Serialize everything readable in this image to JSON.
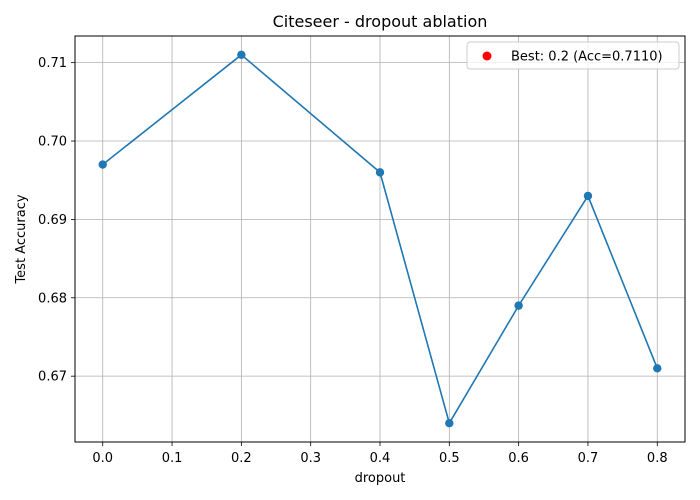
{
  "chart_data": {
    "type": "line",
    "title": "Citeseer - dropout ablation",
    "xlabel": "dropout",
    "ylabel": "Test Accuracy",
    "xlim": [
      -0.04,
      0.84
    ],
    "ylim": [
      0.6616,
      0.7134
    ],
    "xticks": [
      0.0,
      0.1,
      0.2,
      0.3,
      0.4,
      0.5,
      0.6,
      0.7,
      0.8
    ],
    "xtick_labels": [
      "0.0",
      "0.1",
      "0.2",
      "0.3",
      "0.4",
      "0.5",
      "0.6",
      "0.7",
      "0.8"
    ],
    "yticks": [
      0.67,
      0.68,
      0.69,
      0.7,
      0.71
    ],
    "ytick_labels": [
      "0.67",
      "0.68",
      "0.69",
      "0.70",
      "0.71"
    ],
    "grid": true,
    "series": [
      {
        "x": [
          0.0,
          0.2,
          0.4,
          0.5,
          0.6,
          0.7,
          0.8
        ],
        "y": [
          0.697,
          0.711,
          0.696,
          0.664,
          0.679,
          0.693,
          0.671
        ],
        "color": "#1f77b4"
      }
    ],
    "legend": {
      "placement": "upper right",
      "entries": [
        {
          "label": "Best: 0.2 (Acc=0.7110)",
          "color": "#ff0000",
          "marker": "circle"
        }
      ]
    }
  }
}
